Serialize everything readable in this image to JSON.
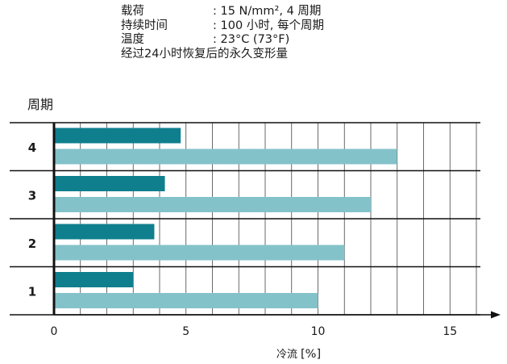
{
  "info": {
    "rows": [
      {
        "label": "载荷",
        "value": ": 15 N/mm², 4 周期"
      },
      {
        "label": "持续时间",
        "value": ": 100 小时, 每个周期"
      },
      {
        "label": "温度",
        "value": ": 23°C (73°F)"
      }
    ],
    "footer": "经过24小时恢复后的永久变形量"
  },
  "chart_data": {
    "type": "bar",
    "orientation": "horizontal",
    "categories": [
      "4",
      "3",
      "2",
      "1"
    ],
    "category_title": "周期",
    "series": [
      {
        "color": "#0f7f8d",
        "values": [
          4.8,
          4.2,
          3.8,
          3.0
        ]
      },
      {
        "color": "#84c2ca",
        "values": [
          13.0,
          12.0,
          11.0,
          10.0
        ]
      }
    ],
    "xlabel": "冷流",
    "xunit": "[%]",
    "xticks": [
      0,
      5,
      10,
      15
    ],
    "xlim": [
      0,
      17
    ],
    "grid": true
  }
}
